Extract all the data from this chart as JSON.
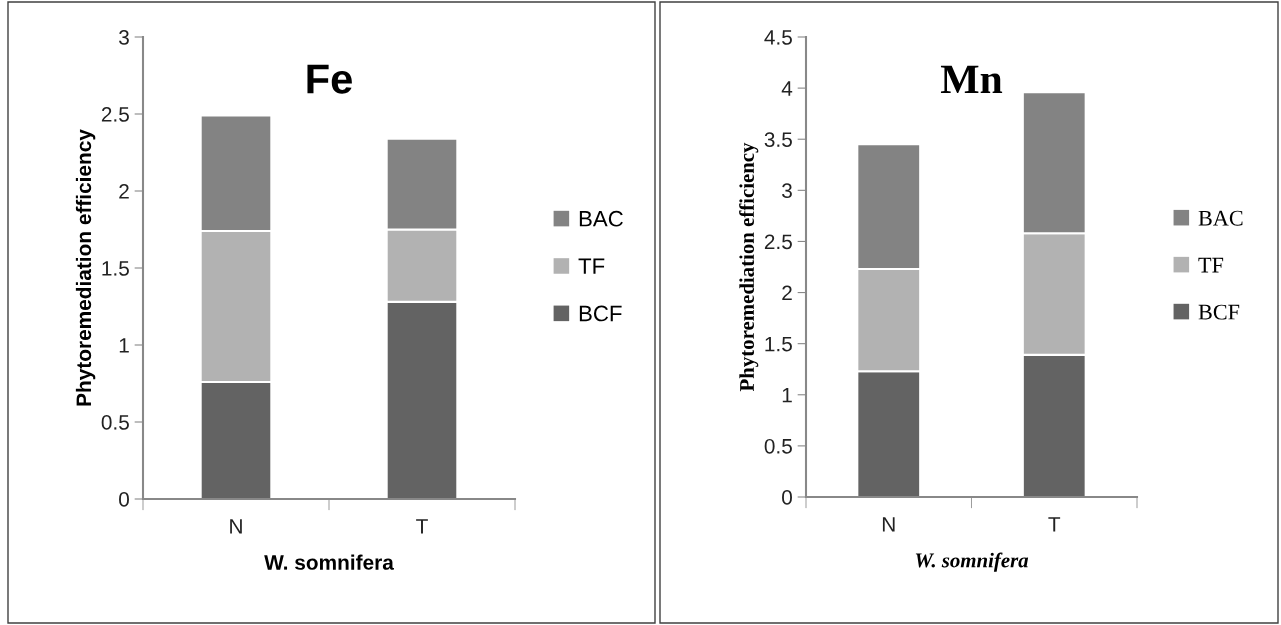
{
  "chart_data": [
    {
      "type": "bar",
      "title": "Fe",
      "xlabel": "W. somnifera",
      "ylabel": "Phytoremediation efficiency",
      "categories": [
        "N",
        "T"
      ],
      "stacked": true,
      "ylim": [
        0,
        3
      ],
      "yticks": [
        0,
        0.5,
        1,
        1.5,
        2,
        2.5,
        3
      ],
      "grid": false,
      "legend": "right",
      "series": [
        {
          "name": "BCF",
          "color": "#636363",
          "values": [
            0.76,
            1.28
          ]
        },
        {
          "name": "TF",
          "color": "#b2b2b2",
          "values": [
            0.98,
            0.47
          ]
        },
        {
          "name": "BAC",
          "color": "#838383",
          "values": [
            0.75,
            0.59
          ]
        }
      ]
    },
    {
      "type": "bar",
      "title": "Mn",
      "xlabel": "W. somnifera",
      "ylabel": "Phytoremediation efficiency",
      "categories": [
        "N",
        "T"
      ],
      "stacked": true,
      "ylim": [
        0,
        4.5
      ],
      "yticks": [
        0,
        0.5,
        1,
        1.5,
        2,
        2.5,
        3,
        3.5,
        4,
        4.5
      ],
      "grid": false,
      "legend": "right",
      "series": [
        {
          "name": "BCF",
          "color": "#636363",
          "values": [
            1.23,
            1.39
          ]
        },
        {
          "name": "TF",
          "color": "#b2b2b2",
          "values": [
            1.0,
            1.19
          ]
        },
        {
          "name": "BAC",
          "color": "#838383",
          "values": [
            1.22,
            1.38
          ]
        }
      ]
    }
  ]
}
